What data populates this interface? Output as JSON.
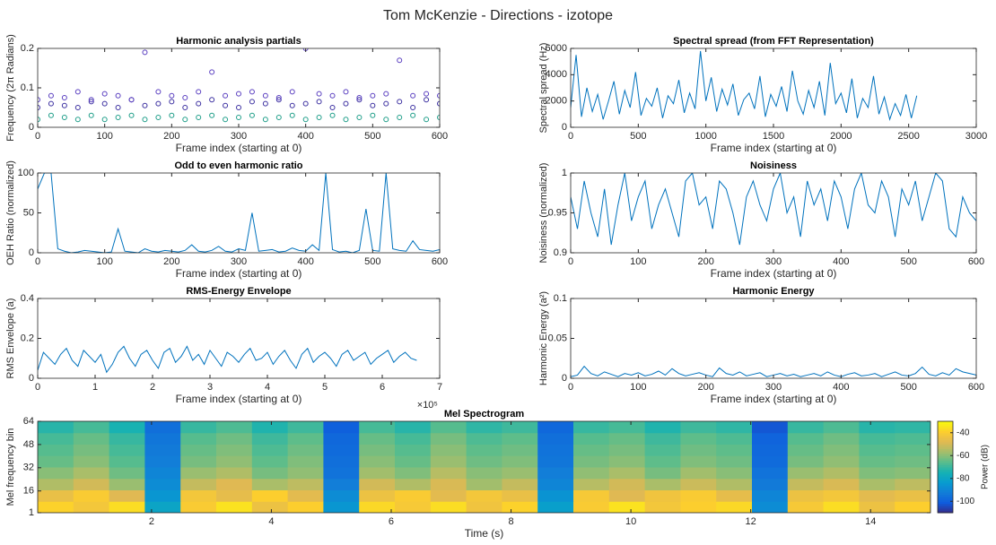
{
  "figure_title": "Tom McKenzie - Directions - izotope",
  "chart_data": [
    {
      "type": "scatter",
      "title": "Harmonic analysis partials",
      "xlabel": "Frame index (starting at 0)",
      "ylabel": "Frequency (2π Radians)",
      "xlim": [
        0,
        600
      ],
      "ylim": [
        0,
        0.2
      ],
      "xticks": [
        0,
        100,
        200,
        300,
        400,
        500,
        600
      ],
      "yticks": [
        0,
        0.1,
        0.2
      ],
      "x": [
        0,
        20,
        40,
        60,
        80,
        100,
        120,
        140,
        160,
        180,
        200,
        220,
        240,
        260,
        280,
        300,
        320,
        340,
        360,
        380,
        400,
        420,
        440,
        460,
        480,
        500,
        520,
        540,
        560,
        580,
        600
      ],
      "series": [
        {
          "color": "#1f9e89",
          "values": [
            0.02,
            0.03,
            0.025,
            0.02,
            0.03,
            0.02,
            0.025,
            0.03,
            0.02,
            0.025,
            0.03,
            0.02,
            0.025,
            0.03,
            0.02,
            0.025,
            0.03,
            0.02,
            0.025,
            0.03,
            0.02,
            0.025,
            0.03,
            0.02,
            0.025,
            0.03,
            0.02,
            0.025,
            0.03,
            0.02,
            0.025
          ]
        },
        {
          "color": "#3b2fa0",
          "values": [
            0.05,
            0.06,
            0.055,
            0.05,
            0.065,
            0.06,
            0.05,
            0.07,
            0.055,
            0.06,
            0.065,
            0.05,
            0.06,
            0.07,
            0.055,
            0.05,
            0.065,
            0.06,
            0.07,
            0.055,
            0.06,
            0.065,
            0.05,
            0.06,
            0.07,
            0.055,
            0.06,
            0.065,
            0.05,
            0.07,
            0.06
          ]
        },
        {
          "color": "#5a3fc0",
          "values": [
            0.07,
            0.08,
            0.075,
            0.09,
            0.07,
            0.085,
            0.08,
            0.07,
            0.19,
            0.09,
            0.08,
            0.075,
            0.09,
            0.14,
            0.08,
            0.085,
            0.09,
            0.08,
            0.075,
            0.09,
            0.2,
            0.085,
            0.08,
            0.09,
            0.075,
            0.08,
            0.085,
            0.17,
            0.08,
            0.085,
            0.08
          ]
        }
      ]
    },
    {
      "type": "line",
      "title": "Spectral spread (from FFT Representation)",
      "xlabel": "Frame index (starting at 0)",
      "ylabel": "Spectral spread (Hz)",
      "xlim": [
        0,
        3000
      ],
      "ylim": [
        0,
        6000
      ],
      "xticks": [
        0,
        500,
        1000,
        1500,
        2000,
        2500,
        3000
      ],
      "yticks": [
        0,
        2000,
        4000,
        6000
      ],
      "x": [
        0,
        40,
        80,
        120,
        160,
        200,
        240,
        280,
        320,
        360,
        400,
        440,
        480,
        520,
        560,
        600,
        640,
        680,
        720,
        760,
        800,
        840,
        880,
        920,
        960,
        1000,
        1040,
        1080,
        1120,
        1160,
        1200,
        1240,
        1280,
        1320,
        1360,
        1400,
        1440,
        1480,
        1520,
        1560,
        1600,
        1640,
        1680,
        1720,
        1760,
        1800,
        1840,
        1880,
        1920,
        1960,
        2000,
        2040,
        2080,
        2120,
        2160,
        2200,
        2240,
        2280,
        2320,
        2360,
        2400,
        2440,
        2480,
        2520,
        2560
      ],
      "series": [
        {
          "color": "#0072bd",
          "values": [
            1500,
            5500,
            800,
            3000,
            1200,
            2500,
            600,
            2000,
            3500,
            1000,
            2800,
            1500,
            4200,
            900,
            2200,
            1600,
            3000,
            700,
            2400,
            1800,
            3600,
            1100,
            2600,
            1400,
            5800,
            2000,
            3800,
            1200,
            2900,
            1700,
            3300,
            900,
            2100,
            2600,
            1400,
            3900,
            800,
            2500,
            1600,
            3100,
            1200,
            4300,
            2000,
            1000,
            2800,
            1500,
            3500,
            900,
            4900,
            1800,
            2600,
            1100,
            3700,
            700,
            2200,
            1500,
            3900,
            1000,
            2300,
            600,
            1800,
            900,
            2500,
            700,
            2400
          ]
        }
      ]
    },
    {
      "type": "line",
      "title": "Odd to even harmonic ratio",
      "xlabel": "Frame index (starting at 0)",
      "ylabel": "OEH Ratio (normalized)",
      "xlim": [
        0,
        600
      ],
      "ylim": [
        0,
        100
      ],
      "xticks": [
        0,
        100,
        200,
        300,
        400,
        500,
        600
      ],
      "yticks": [
        0,
        50,
        100
      ],
      "x": [
        0,
        10,
        20,
        30,
        40,
        50,
        60,
        70,
        80,
        90,
        100,
        110,
        120,
        130,
        140,
        150,
        160,
        170,
        180,
        190,
        200,
        210,
        220,
        230,
        240,
        250,
        260,
        270,
        280,
        290,
        300,
        310,
        320,
        330,
        340,
        350,
        360,
        370,
        380,
        390,
        400,
        410,
        420,
        430,
        440,
        450,
        460,
        470,
        480,
        490,
        500,
        510,
        520,
        530,
        540,
        550,
        560,
        570,
        580,
        590,
        600
      ],
      "series": [
        {
          "color": "#0072bd",
          "values": [
            80,
            100,
            100,
            5,
            2,
            0,
            1,
            3,
            2,
            1,
            0,
            1,
            30,
            2,
            1,
            0,
            5,
            2,
            1,
            3,
            2,
            1,
            3,
            10,
            2,
            1,
            3,
            8,
            2,
            1,
            5,
            3,
            50,
            2,
            3,
            4,
            1,
            2,
            6,
            3,
            2,
            10,
            3,
            100,
            4,
            1,
            2,
            0,
            3,
            55,
            3,
            2,
            100,
            5,
            3,
            2,
            15,
            4,
            3,
            2,
            4
          ]
        }
      ]
    },
    {
      "type": "line",
      "title": "Noisiness",
      "xlabel": "Frame index (starting at 0)",
      "ylabel": "Noisiness (normalized)",
      "xlim": [
        0,
        600
      ],
      "ylim": [
        0.9,
        1
      ],
      "xticks": [
        0,
        100,
        200,
        300,
        400,
        500,
        600
      ],
      "yticks": [
        0.9,
        0.95,
        1
      ],
      "x": [
        0,
        10,
        20,
        30,
        40,
        50,
        60,
        70,
        80,
        90,
        100,
        110,
        120,
        130,
        140,
        150,
        160,
        170,
        180,
        190,
        200,
        210,
        220,
        230,
        240,
        250,
        260,
        270,
        280,
        290,
        300,
        310,
        320,
        330,
        340,
        350,
        360,
        370,
        380,
        390,
        400,
        410,
        420,
        430,
        440,
        450,
        460,
        470,
        480,
        490,
        500,
        510,
        520,
        530,
        540,
        550,
        560,
        570,
        580,
        590,
        600
      ],
      "series": [
        {
          "color": "#0072bd",
          "values": [
            0.97,
            0.93,
            0.99,
            0.95,
            0.92,
            0.98,
            0.91,
            0.96,
            1,
            0.94,
            0.97,
            0.99,
            0.93,
            0.96,
            0.98,
            0.95,
            0.92,
            0.99,
            1,
            0.96,
            0.97,
            0.93,
            0.99,
            0.98,
            0.95,
            0.91,
            0.97,
            0.99,
            0.96,
            0.94,
            0.98,
            1,
            0.95,
            0.97,
            0.92,
            0.99,
            0.96,
            0.98,
            0.94,
            0.99,
            0.97,
            0.93,
            0.98,
            1,
            0.96,
            0.95,
            0.99,
            0.97,
            0.92,
            0.98,
            0.96,
            0.99,
            0.94,
            0.97,
            1,
            0.99,
            0.93,
            0.92,
            0.97,
            0.95,
            0.94
          ]
        }
      ]
    },
    {
      "type": "line",
      "title": "RMS-Energy Envelope",
      "xlabel": "Frame index (starting at 0)",
      "ylabel": "RMS Envelope (a)",
      "x_multiplier_label": "×10⁵",
      "xlim": [
        0,
        7
      ],
      "ylim": [
        0,
        0.4
      ],
      "xticks": [
        0,
        1,
        2,
        3,
        4,
        5,
        6,
        7
      ],
      "yticks": [
        0,
        0.2,
        0.4
      ],
      "x": [
        0,
        0.1,
        0.2,
        0.3,
        0.4,
        0.5,
        0.6,
        0.7,
        0.8,
        0.9,
        1,
        1.1,
        1.2,
        1.3,
        1.4,
        1.5,
        1.6,
        1.7,
        1.8,
        1.9,
        2,
        2.1,
        2.2,
        2.3,
        2.4,
        2.5,
        2.6,
        2.7,
        2.8,
        2.9,
        3,
        3.1,
        3.2,
        3.3,
        3.4,
        3.5,
        3.6,
        3.7,
        3.8,
        3.9,
        4,
        4.1,
        4.2,
        4.3,
        4.4,
        4.5,
        4.6,
        4.7,
        4.8,
        4.9,
        5,
        5.1,
        5.2,
        5.3,
        5.4,
        5.5,
        5.6,
        5.7,
        5.8,
        5.9,
        6,
        6.1,
        6.2,
        6.3,
        6.4,
        6.5,
        6.6
      ],
      "series": [
        {
          "color": "#0072bd",
          "values": [
            0.04,
            0.13,
            0.1,
            0.07,
            0.12,
            0.15,
            0.09,
            0.06,
            0.14,
            0.11,
            0.08,
            0.12,
            0.03,
            0.07,
            0.13,
            0.16,
            0.1,
            0.06,
            0.12,
            0.14,
            0.09,
            0.05,
            0.13,
            0.15,
            0.08,
            0.11,
            0.16,
            0.09,
            0.12,
            0.07,
            0.14,
            0.1,
            0.06,
            0.13,
            0.11,
            0.08,
            0.12,
            0.15,
            0.09,
            0.1,
            0.13,
            0.07,
            0.11,
            0.14,
            0.09,
            0.05,
            0.12,
            0.15,
            0.08,
            0.11,
            0.13,
            0.1,
            0.06,
            0.12,
            0.14,
            0.09,
            0.11,
            0.13,
            0.07,
            0.1,
            0.12,
            0.14,
            0.08,
            0.11,
            0.13,
            0.1,
            0.09
          ]
        }
      ]
    },
    {
      "type": "line",
      "title": "Harmonic Energy",
      "xlabel": "Frame index (starting at 0)",
      "ylabel": "Harmonic Energy (a²)",
      "xlim": [
        0,
        600
      ],
      "ylim": [
        0,
        0.1
      ],
      "xticks": [
        0,
        100,
        200,
        300,
        400,
        500,
        600
      ],
      "yticks": [
        0,
        0.05,
        0.1
      ],
      "x": [
        0,
        10,
        20,
        30,
        40,
        50,
        60,
        70,
        80,
        90,
        100,
        110,
        120,
        130,
        140,
        150,
        160,
        170,
        180,
        190,
        200,
        210,
        220,
        230,
        240,
        250,
        260,
        270,
        280,
        290,
        300,
        310,
        320,
        330,
        340,
        350,
        360,
        370,
        380,
        390,
        400,
        410,
        420,
        430,
        440,
        450,
        460,
        470,
        480,
        490,
        500,
        510,
        520,
        530,
        540,
        550,
        560,
        570,
        580,
        590,
        600
      ],
      "series": [
        {
          "color": "#0072bd",
          "values": [
            0.002,
            0.004,
            0.015,
            0.006,
            0.003,
            0.008,
            0.005,
            0.002,
            0.006,
            0.004,
            0.007,
            0.003,
            0.005,
            0.009,
            0.004,
            0.012,
            0.006,
            0.003,
            0.005,
            0.007,
            0.004,
            0.002,
            0.013,
            0.006,
            0.004,
            0.008,
            0.003,
            0.005,
            0.007,
            0.002,
            0.004,
            0.006,
            0.003,
            0.005,
            0.002,
            0.004,
            0.006,
            0.003,
            0.008,
            0.004,
            0.002,
            0.005,
            0.007,
            0.003,
            0.004,
            0.006,
            0.002,
            0.005,
            0.008,
            0.004,
            0.003,
            0.006,
            0.014,
            0.005,
            0.003,
            0.007,
            0.004,
            0.012,
            0.008,
            0.006,
            0.004
          ]
        }
      ]
    },
    {
      "type": "heatmap",
      "title": "Mel Spectrogram",
      "xlabel": "Time (s)",
      "ylabel": "Mel frequency bin",
      "colorbar_label": "Power (dB)",
      "colormap": "parula",
      "xlim": [
        0.1,
        15
      ],
      "ylim": [
        1,
        64
      ],
      "xticks": [
        2,
        4,
        6,
        8,
        10,
        12,
        14
      ],
      "yticks": [
        1,
        16,
        32,
        48,
        64
      ],
      "zlim": [
        -110,
        -30
      ],
      "colorbar_ticks": [
        -40,
        -60,
        -80,
        -100
      ],
      "z": [
        [
          -38,
          -42,
          -36,
          -80,
          -40,
          -35,
          -44,
          -39,
          -85,
          -37,
          -41,
          -36,
          -43,
          -38,
          -82,
          -40,
          -35,
          -42,
          -39,
          -37,
          -88,
          -41,
          -36,
          -44,
          -39
        ],
        [
          -45,
          -40,
          -48,
          -85,
          -42,
          -46,
          -39,
          -47,
          -88,
          -44,
          -40,
          -47,
          -42,
          -45,
          -86,
          -41,
          -48,
          -43,
          -40,
          -46,
          -90,
          -44,
          -42,
          -47,
          -45
        ],
        [
          -55,
          -50,
          -58,
          -88,
          -52,
          -48,
          -56,
          -53,
          -92,
          -50,
          -55,
          -49,
          -57,
          -52,
          -90,
          -54,
          -50,
          -56,
          -51,
          -55,
          -93,
          -52,
          -49,
          -56,
          -53
        ],
        [
          -60,
          -56,
          -63,
          -90,
          -58,
          -55,
          -62,
          -59,
          -95,
          -57,
          -61,
          -54,
          -60,
          -58,
          -92,
          -59,
          -56,
          -62,
          -57,
          -60,
          -95,
          -58,
          -55,
          -61,
          -60
        ],
        [
          -64,
          -60,
          -66,
          -92,
          -62,
          -59,
          -65,
          -61,
          -96,
          -60,
          -64,
          -58,
          -63,
          -61,
          -94,
          -62,
          -60,
          -65,
          -61,
          -63,
          -97,
          -62,
          -59,
          -64,
          -63
        ],
        [
          -66,
          -62,
          -68,
          -93,
          -64,
          -61,
          -67,
          -63,
          -97,
          -62,
          -66,
          -60,
          -65,
          -63,
          -95,
          -64,
          -62,
          -67,
          -63,
          -65,
          -98,
          -64,
          -61,
          -66,
          -65
        ],
        [
          -68,
          -64,
          -70,
          -94,
          -66,
          -63,
          -69,
          -65,
          -98,
          -64,
          -68,
          -62,
          -67,
          -65,
          -96,
          -66,
          -64,
          -69,
          -65,
          -67,
          -99,
          -66,
          -63,
          -68,
          -67
        ],
        [
          -72,
          -68,
          -74,
          -96,
          -70,
          -67,
          -73,
          -69,
          -100,
          -68,
          -72,
          -66,
          -71,
          -69,
          -98,
          -70,
          -68,
          -73,
          -69,
          -71,
          -102,
          -70,
          -67,
          -72,
          -71
        ]
      ]
    }
  ]
}
